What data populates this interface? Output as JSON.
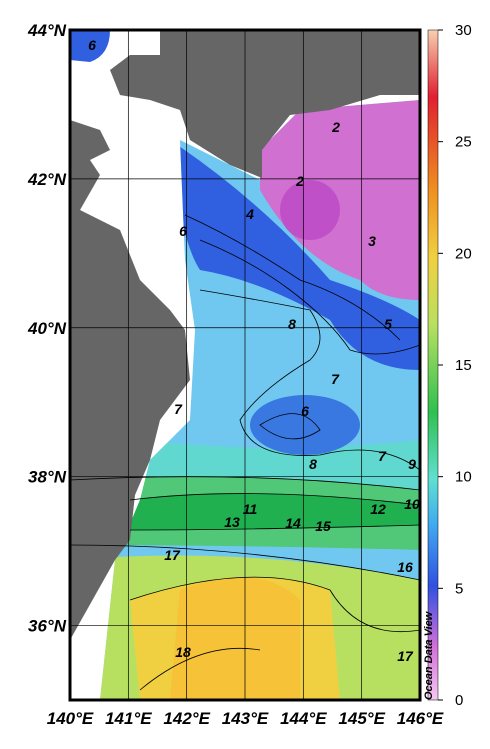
{
  "map": {
    "lon_range": [
      140,
      146
    ],
    "lat_range": [
      35,
      44
    ],
    "lon_ticks": [
      {
        "value": 140,
        "label": "140°E"
      },
      {
        "value": 141,
        "label": "141°E"
      },
      {
        "value": 142,
        "label": "142°E"
      },
      {
        "value": 143,
        "label": "143°E"
      },
      {
        "value": 144,
        "label": "144°E"
      },
      {
        "value": 145,
        "label": "145°E"
      },
      {
        "value": 146,
        "label": "146°E"
      }
    ],
    "lat_ticks": [
      {
        "value": 44,
        "label": "44°N"
      },
      {
        "value": 42,
        "label": "42°N"
      },
      {
        "value": 40,
        "label": "40°N"
      },
      {
        "value": 38,
        "label": "38°N"
      },
      {
        "value": 36,
        "label": "36°N"
      }
    ],
    "contour_labels": [
      6,
      2,
      2,
      3,
      6,
      4,
      8,
      5,
      7,
      7,
      6,
      8,
      7,
      9,
      11,
      10,
      12,
      13,
      14,
      15,
      17,
      16,
      18,
      17
    ],
    "colorbar": {
      "range": [
        0,
        30
      ],
      "ticks": [
        0,
        5,
        10,
        15,
        20,
        25,
        30
      ]
    },
    "credit": "Ocean Data View"
  }
}
